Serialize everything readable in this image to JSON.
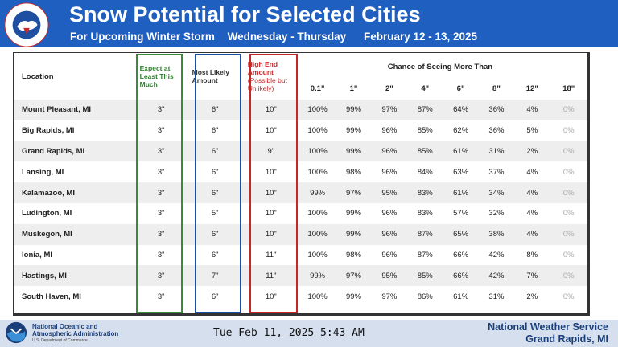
{
  "header": {
    "title": "Snow Potential for Selected Cities",
    "subtitle_storm": "For Upcoming Winter Storm",
    "subtitle_days": "Wednesday - Thursday",
    "subtitle_dates": "February 12 - 13, 2025",
    "logo_text": "NATIONAL WEATHER SERVICE",
    "accent_color": "#1f5fbf"
  },
  "table": {
    "col_location": "Location",
    "col_least": "Expect at Least This Much",
    "col_likely": "Most Likely Amount",
    "col_high": "High End Amount",
    "col_high_note": "(Possible but Unlikely)",
    "chance_title": "Chance of Seeing More Than",
    "thresholds": [
      "0.1\"",
      "1\"",
      "2\"",
      "4\"",
      "6\"",
      "8\"",
      "12\"",
      "18\""
    ],
    "rows": [
      {
        "location": "Mount Pleasant, MI",
        "least": "3\"",
        "likely": "6\"",
        "high": "10\"",
        "pcts": [
          "100%",
          "99%",
          "97%",
          "87%",
          "64%",
          "36%",
          "4%",
          "0%"
        ]
      },
      {
        "location": "Big Rapids, MI",
        "least": "3\"",
        "likely": "6\"",
        "high": "10\"",
        "pcts": [
          "100%",
          "99%",
          "96%",
          "85%",
          "62%",
          "36%",
          "5%",
          "0%"
        ]
      },
      {
        "location": "Grand Rapids, MI",
        "least": "3\"",
        "likely": "6\"",
        "high": "9\"",
        "pcts": [
          "100%",
          "99%",
          "96%",
          "85%",
          "61%",
          "31%",
          "2%",
          "0%"
        ]
      },
      {
        "location": "Lansing, MI",
        "least": "3\"",
        "likely": "6\"",
        "high": "10\"",
        "pcts": [
          "100%",
          "98%",
          "96%",
          "84%",
          "63%",
          "37%",
          "4%",
          "0%"
        ]
      },
      {
        "location": "Kalamazoo, MI",
        "least": "3\"",
        "likely": "6\"",
        "high": "10\"",
        "pcts": [
          "99%",
          "97%",
          "95%",
          "83%",
          "61%",
          "34%",
          "4%",
          "0%"
        ]
      },
      {
        "location": "Ludington, MI",
        "least": "3\"",
        "likely": "5\"",
        "high": "10\"",
        "pcts": [
          "100%",
          "99%",
          "96%",
          "83%",
          "57%",
          "32%",
          "4%",
          "0%"
        ]
      },
      {
        "location": "Muskegon, MI",
        "least": "3\"",
        "likely": "6\"",
        "high": "10\"",
        "pcts": [
          "100%",
          "99%",
          "96%",
          "87%",
          "65%",
          "38%",
          "4%",
          "0%"
        ]
      },
      {
        "location": "Ionia, MI",
        "least": "3\"",
        "likely": "6\"",
        "high": "11\"",
        "pcts": [
          "100%",
          "98%",
          "96%",
          "87%",
          "66%",
          "42%",
          "8%",
          "0%"
        ]
      },
      {
        "location": "Hastings, MI",
        "least": "3\"",
        "likely": "7\"",
        "high": "11\"",
        "pcts": [
          "99%",
          "97%",
          "95%",
          "85%",
          "66%",
          "42%",
          "7%",
          "0%"
        ]
      },
      {
        "location": "South Haven, MI",
        "least": "3\"",
        "likely": "6\"",
        "high": "10\"",
        "pcts": [
          "100%",
          "99%",
          "97%",
          "86%",
          "61%",
          "31%",
          "2%",
          "0%"
        ]
      }
    ]
  },
  "footer": {
    "noaa_name": "National Oceanic and Atmospheric Administration",
    "noaa_dept": "U.S. Department of Commerce",
    "timestamp": "Tue Feb 11, 2025 5:43 AM",
    "office_name": "National Weather Service",
    "office_location": "Grand Rapids, MI"
  }
}
